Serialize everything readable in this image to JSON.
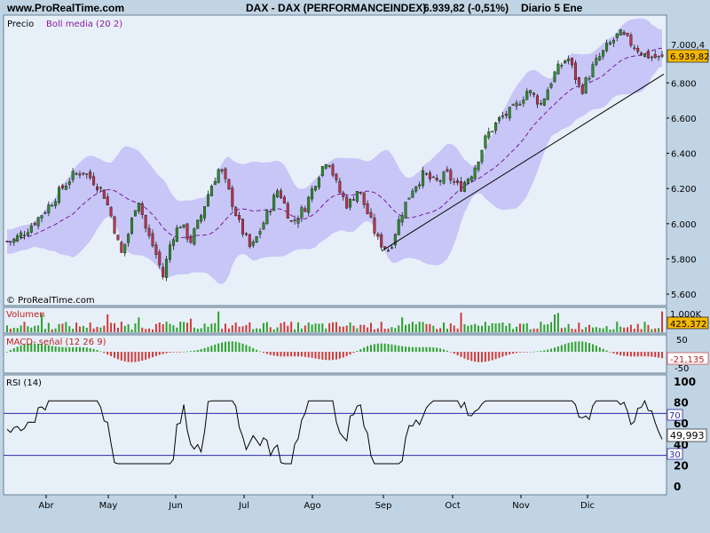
{
  "header": {
    "site": "www.ProRealTime.com",
    "instrument": "DAX - DAX (PERFORMANCEINDEX)",
    "quote": "6.939,82 (-0,51%)",
    "period": "Diario  5 Ene"
  },
  "colors": {
    "background": "#c0d4e4",
    "panel": "#e7f0f8",
    "bollinger_band": "#c7c6f7",
    "bollinger_mid": "#7a1a9b",
    "bull_candle": "#2e8b2e",
    "bear_candle": "#b8324a",
    "volume_bull": "#2ea02e",
    "volume_bear": "#d03a3a",
    "rsi_line": "#000000",
    "rsi_level_line": "#2a2aa8"
  },
  "chart_data": [
    {
      "type": "candlestick",
      "title": "Precio",
      "legend": [
        "Boll media (20 2)"
      ],
      "watermark": "© ProRealTime.com",
      "x_months": [
        "Abr",
        "May",
        "Jun",
        "Jul",
        "Ago",
        "Sep",
        "Oct",
        "Nov",
        "Dic"
      ],
      "y_ticks": [
        "5.600",
        "5.800",
        "6.000",
        "6.200",
        "6.400",
        "6.600",
        "6.800"
      ],
      "ylim": [
        5540,
        7180
      ],
      "price_tags": [
        "7.000,4",
        "6.939,82"
      ],
      "trendline": {
        "from": [
          "Sep",
          5845
        ],
        "to": [
          "end",
          6850
        ]
      },
      "close_path": [
        {
          "x": "Mar",
          "y": 5900
        },
        {
          "x": "Mar",
          "y": 5960
        },
        {
          "x": "Mar",
          "y": 6040
        },
        {
          "x": "Abr",
          "y": 6120
        },
        {
          "x": "Abr",
          "y": 6200
        },
        {
          "x": "Abr",
          "y": 6270
        },
        {
          "x": "Abr",
          "y": 6300
        },
        {
          "x": "Abr",
          "y": 6250
        },
        {
          "x": "Abr",
          "y": 6180
        },
        {
          "x": "May",
          "y": 6020
        },
        {
          "x": "May",
          "y": 5820
        },
        {
          "x": "May",
          "y": 5960
        },
        {
          "x": "May",
          "y": 6160
        },
        {
          "x": "May",
          "y": 5960
        },
        {
          "x": "May",
          "y": 5850
        },
        {
          "x": "May",
          "y": 5700
        },
        {
          "x": "May",
          "y": 5920
        },
        {
          "x": "Jun",
          "y": 6000
        },
        {
          "x": "Jun",
          "y": 5900
        },
        {
          "x": "Jun",
          "y": 6030
        },
        {
          "x": "Jun",
          "y": 6200
        },
        {
          "x": "Jun",
          "y": 6320
        },
        {
          "x": "Jun",
          "y": 6170
        },
        {
          "x": "Jun",
          "y": 6000
        },
        {
          "x": "Jul",
          "y": 5850
        },
        {
          "x": "Jul",
          "y": 6020
        },
        {
          "x": "Jul",
          "y": 6200
        },
        {
          "x": "Jul",
          "y": 6000
        },
        {
          "x": "Jul",
          "y": 6100
        },
        {
          "x": "Ago",
          "y": 6270
        },
        {
          "x": "Ago",
          "y": 6380
        },
        {
          "x": "Ago",
          "y": 6200
        },
        {
          "x": "Ago",
          "y": 6100
        },
        {
          "x": "Ago",
          "y": 6200
        },
        {
          "x": "Ago",
          "y": 6050
        },
        {
          "x": "Ago",
          "y": 5900
        },
        {
          "x": "Sep",
          "y": 5850
        },
        {
          "x": "Sep",
          "y": 6050
        },
        {
          "x": "Sep",
          "y": 6200
        },
        {
          "x": "Sep",
          "y": 6280
        },
        {
          "x": "Sep",
          "y": 6230
        },
        {
          "x": "Sep",
          "y": 6280
        },
        {
          "x": "Oct",
          "y": 6200
        },
        {
          "x": "Oct",
          "y": 6300
        },
        {
          "x": "Oct",
          "y": 6500
        },
        {
          "x": "Oct",
          "y": 6600
        },
        {
          "x": "Oct",
          "y": 6650
        },
        {
          "x": "Nov",
          "y": 6760
        },
        {
          "x": "Nov",
          "y": 6680
        },
        {
          "x": "Nov",
          "y": 6850
        },
        {
          "x": "Nov",
          "y": 6950
        },
        {
          "x": "Nov",
          "y": 6750
        },
        {
          "x": "Dic",
          "y": 6900
        },
        {
          "x": "Dic",
          "y": 7000
        },
        {
          "x": "Dic",
          "y": 7080
        },
        {
          "x": "Dic",
          "y": 7020
        },
        {
          "x": "Dic",
          "y": 6960
        },
        {
          "x": "Dic",
          "y": 6940
        }
      ]
    },
    {
      "type": "bar",
      "title": "Volumen",
      "y_ticks": [
        "1.000K"
      ],
      "last_value": "425.372"
    },
    {
      "type": "bar",
      "title": "MACD- señal (12 26 9)",
      "y_ticks": [
        "50",
        "-50"
      ],
      "last_value": "-21,135"
    },
    {
      "type": "line",
      "title": "RSI (14)",
      "y_ticks": [
        "100",
        "80",
        "60",
        "40",
        "20",
        "0"
      ],
      "ylim": [
        0,
        100
      ],
      "levels": [
        70,
        30
      ],
      "last_value": "49,993"
    }
  ]
}
